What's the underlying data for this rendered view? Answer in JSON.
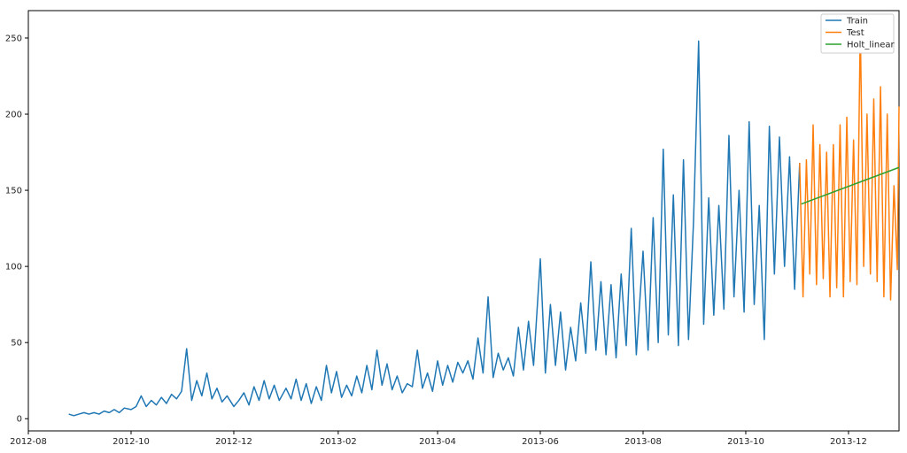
{
  "chart_data": {
    "type": "line",
    "title": "",
    "xlabel": "",
    "ylabel": "",
    "x_axis_type": "date",
    "xlim": [
      "2012-08-01",
      "2013-12-31"
    ],
    "ylim": [
      -8,
      268
    ],
    "x_ticks": [
      {
        "date": "2012-08-01",
        "label": "2012-08"
      },
      {
        "date": "2012-10-01",
        "label": "2012-10"
      },
      {
        "date": "2012-12-01",
        "label": "2012-12"
      },
      {
        "date": "2013-02-01",
        "label": "2013-02"
      },
      {
        "date": "2013-04-01",
        "label": "2013-04"
      },
      {
        "date": "2013-06-01",
        "label": "2013-06"
      },
      {
        "date": "2013-08-01",
        "label": "2013-08"
      },
      {
        "date": "2013-10-01",
        "label": "2013-10"
      },
      {
        "date": "2013-12-01",
        "label": "2013-12"
      }
    ],
    "y_ticks": [
      0,
      50,
      100,
      150,
      200,
      250
    ],
    "grid": false,
    "legend_position": "top-right",
    "series": [
      {
        "name": "Train",
        "color": "#1f77b4",
        "points": [
          [
            "2012-08-25",
            3
          ],
          [
            "2012-08-28",
            2
          ],
          [
            "2012-08-31",
            3
          ],
          [
            "2012-09-03",
            4
          ],
          [
            "2012-09-06",
            3
          ],
          [
            "2012-09-09",
            4
          ],
          [
            "2012-09-12",
            3
          ],
          [
            "2012-09-15",
            5
          ],
          [
            "2012-09-18",
            4
          ],
          [
            "2012-09-21",
            6
          ],
          [
            "2012-09-24",
            4
          ],
          [
            "2012-09-27",
            7
          ],
          [
            "2012-10-01",
            6
          ],
          [
            "2012-10-04",
            8
          ],
          [
            "2012-10-07",
            15
          ],
          [
            "2012-10-10",
            8
          ],
          [
            "2012-10-13",
            12
          ],
          [
            "2012-10-16",
            9
          ],
          [
            "2012-10-19",
            14
          ],
          [
            "2012-10-22",
            10
          ],
          [
            "2012-10-25",
            16
          ],
          [
            "2012-10-28",
            13
          ],
          [
            "2012-10-31",
            18
          ],
          [
            "2012-11-03",
            46
          ],
          [
            "2012-11-06",
            12
          ],
          [
            "2012-11-09",
            25
          ],
          [
            "2012-11-12",
            15
          ],
          [
            "2012-11-15",
            30
          ],
          [
            "2012-11-18",
            13
          ],
          [
            "2012-11-21",
            20
          ],
          [
            "2012-11-24",
            11
          ],
          [
            "2012-11-27",
            15
          ],
          [
            "2012-12-01",
            8
          ],
          [
            "2012-12-04",
            12
          ],
          [
            "2012-12-07",
            17
          ],
          [
            "2012-12-10",
            9
          ],
          [
            "2012-12-13",
            21
          ],
          [
            "2012-12-16",
            12
          ],
          [
            "2012-12-19",
            25
          ],
          [
            "2012-12-22",
            13
          ],
          [
            "2012-12-25",
            22
          ],
          [
            "2012-12-28",
            12
          ],
          [
            "2013-01-01",
            20
          ],
          [
            "2013-01-04",
            13
          ],
          [
            "2013-01-07",
            26
          ],
          [
            "2013-01-10",
            12
          ],
          [
            "2013-01-13",
            23
          ],
          [
            "2013-01-16",
            10
          ],
          [
            "2013-01-19",
            21
          ],
          [
            "2013-01-22",
            12
          ],
          [
            "2013-01-25",
            35
          ],
          [
            "2013-01-28",
            17
          ],
          [
            "2013-01-31",
            31
          ],
          [
            "2013-02-03",
            14
          ],
          [
            "2013-02-06",
            22
          ],
          [
            "2013-02-09",
            15
          ],
          [
            "2013-02-12",
            28
          ],
          [
            "2013-02-15",
            17
          ],
          [
            "2013-02-18",
            35
          ],
          [
            "2013-02-21",
            19
          ],
          [
            "2013-02-24",
            45
          ],
          [
            "2013-02-27",
            22
          ],
          [
            "2013-03-02",
            36
          ],
          [
            "2013-03-05",
            19
          ],
          [
            "2013-03-08",
            28
          ],
          [
            "2013-03-11",
            17
          ],
          [
            "2013-03-14",
            23
          ],
          [
            "2013-03-17",
            21
          ],
          [
            "2013-03-20",
            45
          ],
          [
            "2013-03-23",
            20
          ],
          [
            "2013-03-26",
            30
          ],
          [
            "2013-03-29",
            18
          ],
          [
            "2013-04-01",
            38
          ],
          [
            "2013-04-04",
            22
          ],
          [
            "2013-04-07",
            35
          ],
          [
            "2013-04-10",
            24
          ],
          [
            "2013-04-13",
            37
          ],
          [
            "2013-04-16",
            30
          ],
          [
            "2013-04-19",
            38
          ],
          [
            "2013-04-22",
            26
          ],
          [
            "2013-04-25",
            53
          ],
          [
            "2013-04-28",
            30
          ],
          [
            "2013-05-01",
            80
          ],
          [
            "2013-05-04",
            27
          ],
          [
            "2013-05-07",
            43
          ],
          [
            "2013-05-10",
            32
          ],
          [
            "2013-05-13",
            40
          ],
          [
            "2013-05-16",
            28
          ],
          [
            "2013-05-19",
            60
          ],
          [
            "2013-05-22",
            32
          ],
          [
            "2013-05-25",
            64
          ],
          [
            "2013-05-28",
            35
          ],
          [
            "2013-06-01",
            105
          ],
          [
            "2013-06-04",
            30
          ],
          [
            "2013-06-07",
            75
          ],
          [
            "2013-06-10",
            35
          ],
          [
            "2013-06-13",
            70
          ],
          [
            "2013-06-16",
            32
          ],
          [
            "2013-06-19",
            60
          ],
          [
            "2013-06-22",
            38
          ],
          [
            "2013-06-25",
            76
          ],
          [
            "2013-06-28",
            43
          ],
          [
            "2013-07-01",
            103
          ],
          [
            "2013-07-04",
            45
          ],
          [
            "2013-07-07",
            90
          ],
          [
            "2013-07-10",
            42
          ],
          [
            "2013-07-13",
            88
          ],
          [
            "2013-07-16",
            40
          ],
          [
            "2013-07-19",
            95
          ],
          [
            "2013-07-22",
            48
          ],
          [
            "2013-07-25",
            125
          ],
          [
            "2013-07-28",
            42
          ],
          [
            "2013-08-01",
            110
          ],
          [
            "2013-08-04",
            45
          ],
          [
            "2013-08-07",
            132
          ],
          [
            "2013-08-10",
            50
          ],
          [
            "2013-08-13",
            177
          ],
          [
            "2013-08-16",
            55
          ],
          [
            "2013-08-19",
            147
          ],
          [
            "2013-08-22",
            48
          ],
          [
            "2013-08-25",
            170
          ],
          [
            "2013-08-28",
            52
          ],
          [
            "2013-08-31",
            130
          ],
          [
            "2013-09-03",
            248
          ],
          [
            "2013-09-06",
            62
          ],
          [
            "2013-09-09",
            145
          ],
          [
            "2013-09-12",
            68
          ],
          [
            "2013-09-15",
            140
          ],
          [
            "2013-09-18",
            72
          ],
          [
            "2013-09-21",
            186
          ],
          [
            "2013-09-24",
            80
          ],
          [
            "2013-09-27",
            150
          ],
          [
            "2013-09-30",
            70
          ],
          [
            "2013-10-03",
            195
          ],
          [
            "2013-10-06",
            75
          ],
          [
            "2013-10-09",
            140
          ],
          [
            "2013-10-12",
            52
          ],
          [
            "2013-10-15",
            192
          ],
          [
            "2013-10-18",
            95
          ],
          [
            "2013-10-21",
            185
          ],
          [
            "2013-10-24",
            100
          ],
          [
            "2013-10-27",
            172
          ],
          [
            "2013-10-30",
            85
          ],
          [
            "2013-11-02",
            168
          ]
        ]
      },
      {
        "name": "Test",
        "color": "#ff7f0e",
        "points": [
          [
            "2013-11-02",
            168
          ],
          [
            "2013-11-04",
            80
          ],
          [
            "2013-11-06",
            170
          ],
          [
            "2013-11-08",
            95
          ],
          [
            "2013-11-10",
            193
          ],
          [
            "2013-11-12",
            88
          ],
          [
            "2013-11-14",
            180
          ],
          [
            "2013-11-16",
            92
          ],
          [
            "2013-11-18",
            175
          ],
          [
            "2013-11-20",
            80
          ],
          [
            "2013-11-22",
            180
          ],
          [
            "2013-11-24",
            86
          ],
          [
            "2013-11-26",
            193
          ],
          [
            "2013-11-28",
            80
          ],
          [
            "2013-11-30",
            198
          ],
          [
            "2013-12-02",
            90
          ],
          [
            "2013-12-04",
            183
          ],
          [
            "2013-12-06",
            88
          ],
          [
            "2013-12-08",
            258
          ],
          [
            "2013-12-10",
            100
          ],
          [
            "2013-12-12",
            200
          ],
          [
            "2013-12-14",
            95
          ],
          [
            "2013-12-16",
            210
          ],
          [
            "2013-12-18",
            90
          ],
          [
            "2013-12-20",
            218
          ],
          [
            "2013-12-22",
            80
          ],
          [
            "2013-12-24",
            200
          ],
          [
            "2013-12-26",
            78
          ],
          [
            "2013-12-28",
            153
          ],
          [
            "2013-12-30",
            98
          ],
          [
            "2013-12-31",
            205
          ]
        ]
      },
      {
        "name": "Holt_linear",
        "color": "#2ca02c",
        "points": [
          [
            "2013-11-03",
            141
          ],
          [
            "2013-12-31",
            165
          ]
        ]
      }
    ]
  }
}
